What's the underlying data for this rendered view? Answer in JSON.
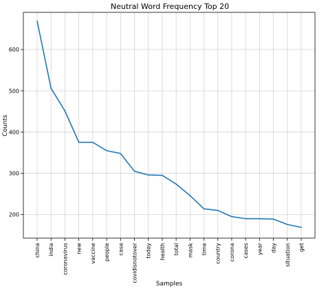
{
  "chart_data": {
    "type": "line",
    "title": "Neutral Word Frequency Top 20",
    "xlabel": "Samples",
    "ylabel": "Counts",
    "categories": [
      "china",
      "india",
      "coronavirus",
      "new",
      "vaccine",
      "people",
      "case",
      "covidisnotover",
      "today",
      "health",
      "total",
      "mask",
      "time",
      "country",
      "corona",
      "cases",
      "year",
      "day",
      "situation",
      "get"
    ],
    "series": [
      {
        "values": [
          669,
          506,
          451,
          375,
          375,
          355,
          348,
          305,
          296,
          295,
          274,
          246,
          214,
          210,
          195,
          190,
          190,
          189,
          176,
          169
        ]
      }
    ],
    "ylim": [
      143,
      690
    ],
    "yticks": [
      200,
      300,
      400,
      500,
      600
    ],
    "grid": true,
    "line_color": "#1f77b4"
  }
}
